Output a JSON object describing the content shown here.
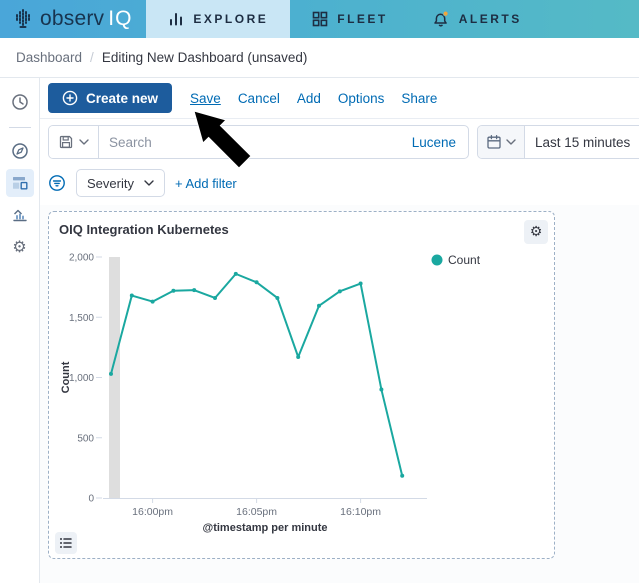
{
  "topnav": {
    "brand": {
      "prefix": "observ",
      "suffix": "IQ"
    },
    "items": [
      {
        "label": "EXPLORE",
        "icon": "bar-chart-icon",
        "active": true
      },
      {
        "label": "FLEET",
        "icon": "grid-icon",
        "active": false
      },
      {
        "label": "ALERTS",
        "icon": "bell-icon",
        "active": false
      }
    ]
  },
  "breadcrumb": {
    "root": "Dashboard",
    "separator": "/",
    "current": "Editing New Dashboard (unsaved)"
  },
  "sidebar": {
    "icons": [
      "clock",
      "compass",
      "dashboard",
      "visualize",
      "gear"
    ]
  },
  "toolbar": {
    "create_new_label": "Create new",
    "links": [
      "Save",
      "Cancel",
      "Add",
      "Options",
      "Share"
    ]
  },
  "search": {
    "placeholder": "Search",
    "language": "Lucene",
    "time_range": "Last 15 minutes",
    "icons": {
      "saved_query": "floppy-disk-icon",
      "date": "calendar-icon"
    }
  },
  "filters": {
    "field_label": "Severity",
    "add_filter_label": "+ Add filter",
    "icon": "filter-circle-icon"
  },
  "panel": {
    "title": "OIQ Integration Kubernetes",
    "settings_icon": "gear-icon",
    "legend_toggle_icon": "list-icon"
  },
  "annotation": {
    "type": "arrow-cursor",
    "points_to": "Save"
  },
  "chart_data": {
    "type": "line",
    "title": "OIQ Integration Kubernetes",
    "xlabel": "@timestamp per minute",
    "ylabel": "Count",
    "ylim": [
      0,
      2000
    ],
    "yticks": [
      0,
      500,
      1000,
      1500,
      2000
    ],
    "ytick_labels": [
      "0",
      "500",
      "1,000",
      "1,500",
      "2,000"
    ],
    "x": [
      "15:58",
      "15:59",
      "16:00",
      "16:01",
      "16:02",
      "16:03",
      "16:04",
      "16:05",
      "16:06",
      "16:07",
      "16:08",
      "16:09",
      "16:10",
      "16:11",
      "16:12"
    ],
    "xtick_indices": [
      2,
      7,
      12
    ],
    "xtick_labels": [
      "16:00pm",
      "16:05pm",
      "16:10pm"
    ],
    "series": [
      {
        "name": "Count",
        "color": "#1aa8a0",
        "values": [
          1030,
          1680,
          1630,
          1720,
          1725,
          1660,
          1860,
          1790,
          1660,
          1170,
          1595,
          1715,
          1780,
          900,
          185
        ]
      }
    ],
    "legend": {
      "position": "top-right",
      "entries": [
        "Count"
      ]
    },
    "grid": false,
    "partial_bucket_band": {
      "at_index": 0,
      "color": "#d8d8d8"
    }
  },
  "colors": {
    "topbar_left": "#4aa6d9",
    "topbar_right": "#55bac6",
    "active_tab_bg": "#c9e6f5",
    "link_blue": "#006bb4",
    "primary_button": "#1d5c9d",
    "text_dark": "#343741",
    "text_muted": "#69707d",
    "border": "#d3dae6",
    "panel_dashed_border": "#9db0c6",
    "series_teal": "#1aa8a0",
    "alert_dot_orange": "#f2a63c",
    "band_gray": "#d8d8d8"
  }
}
